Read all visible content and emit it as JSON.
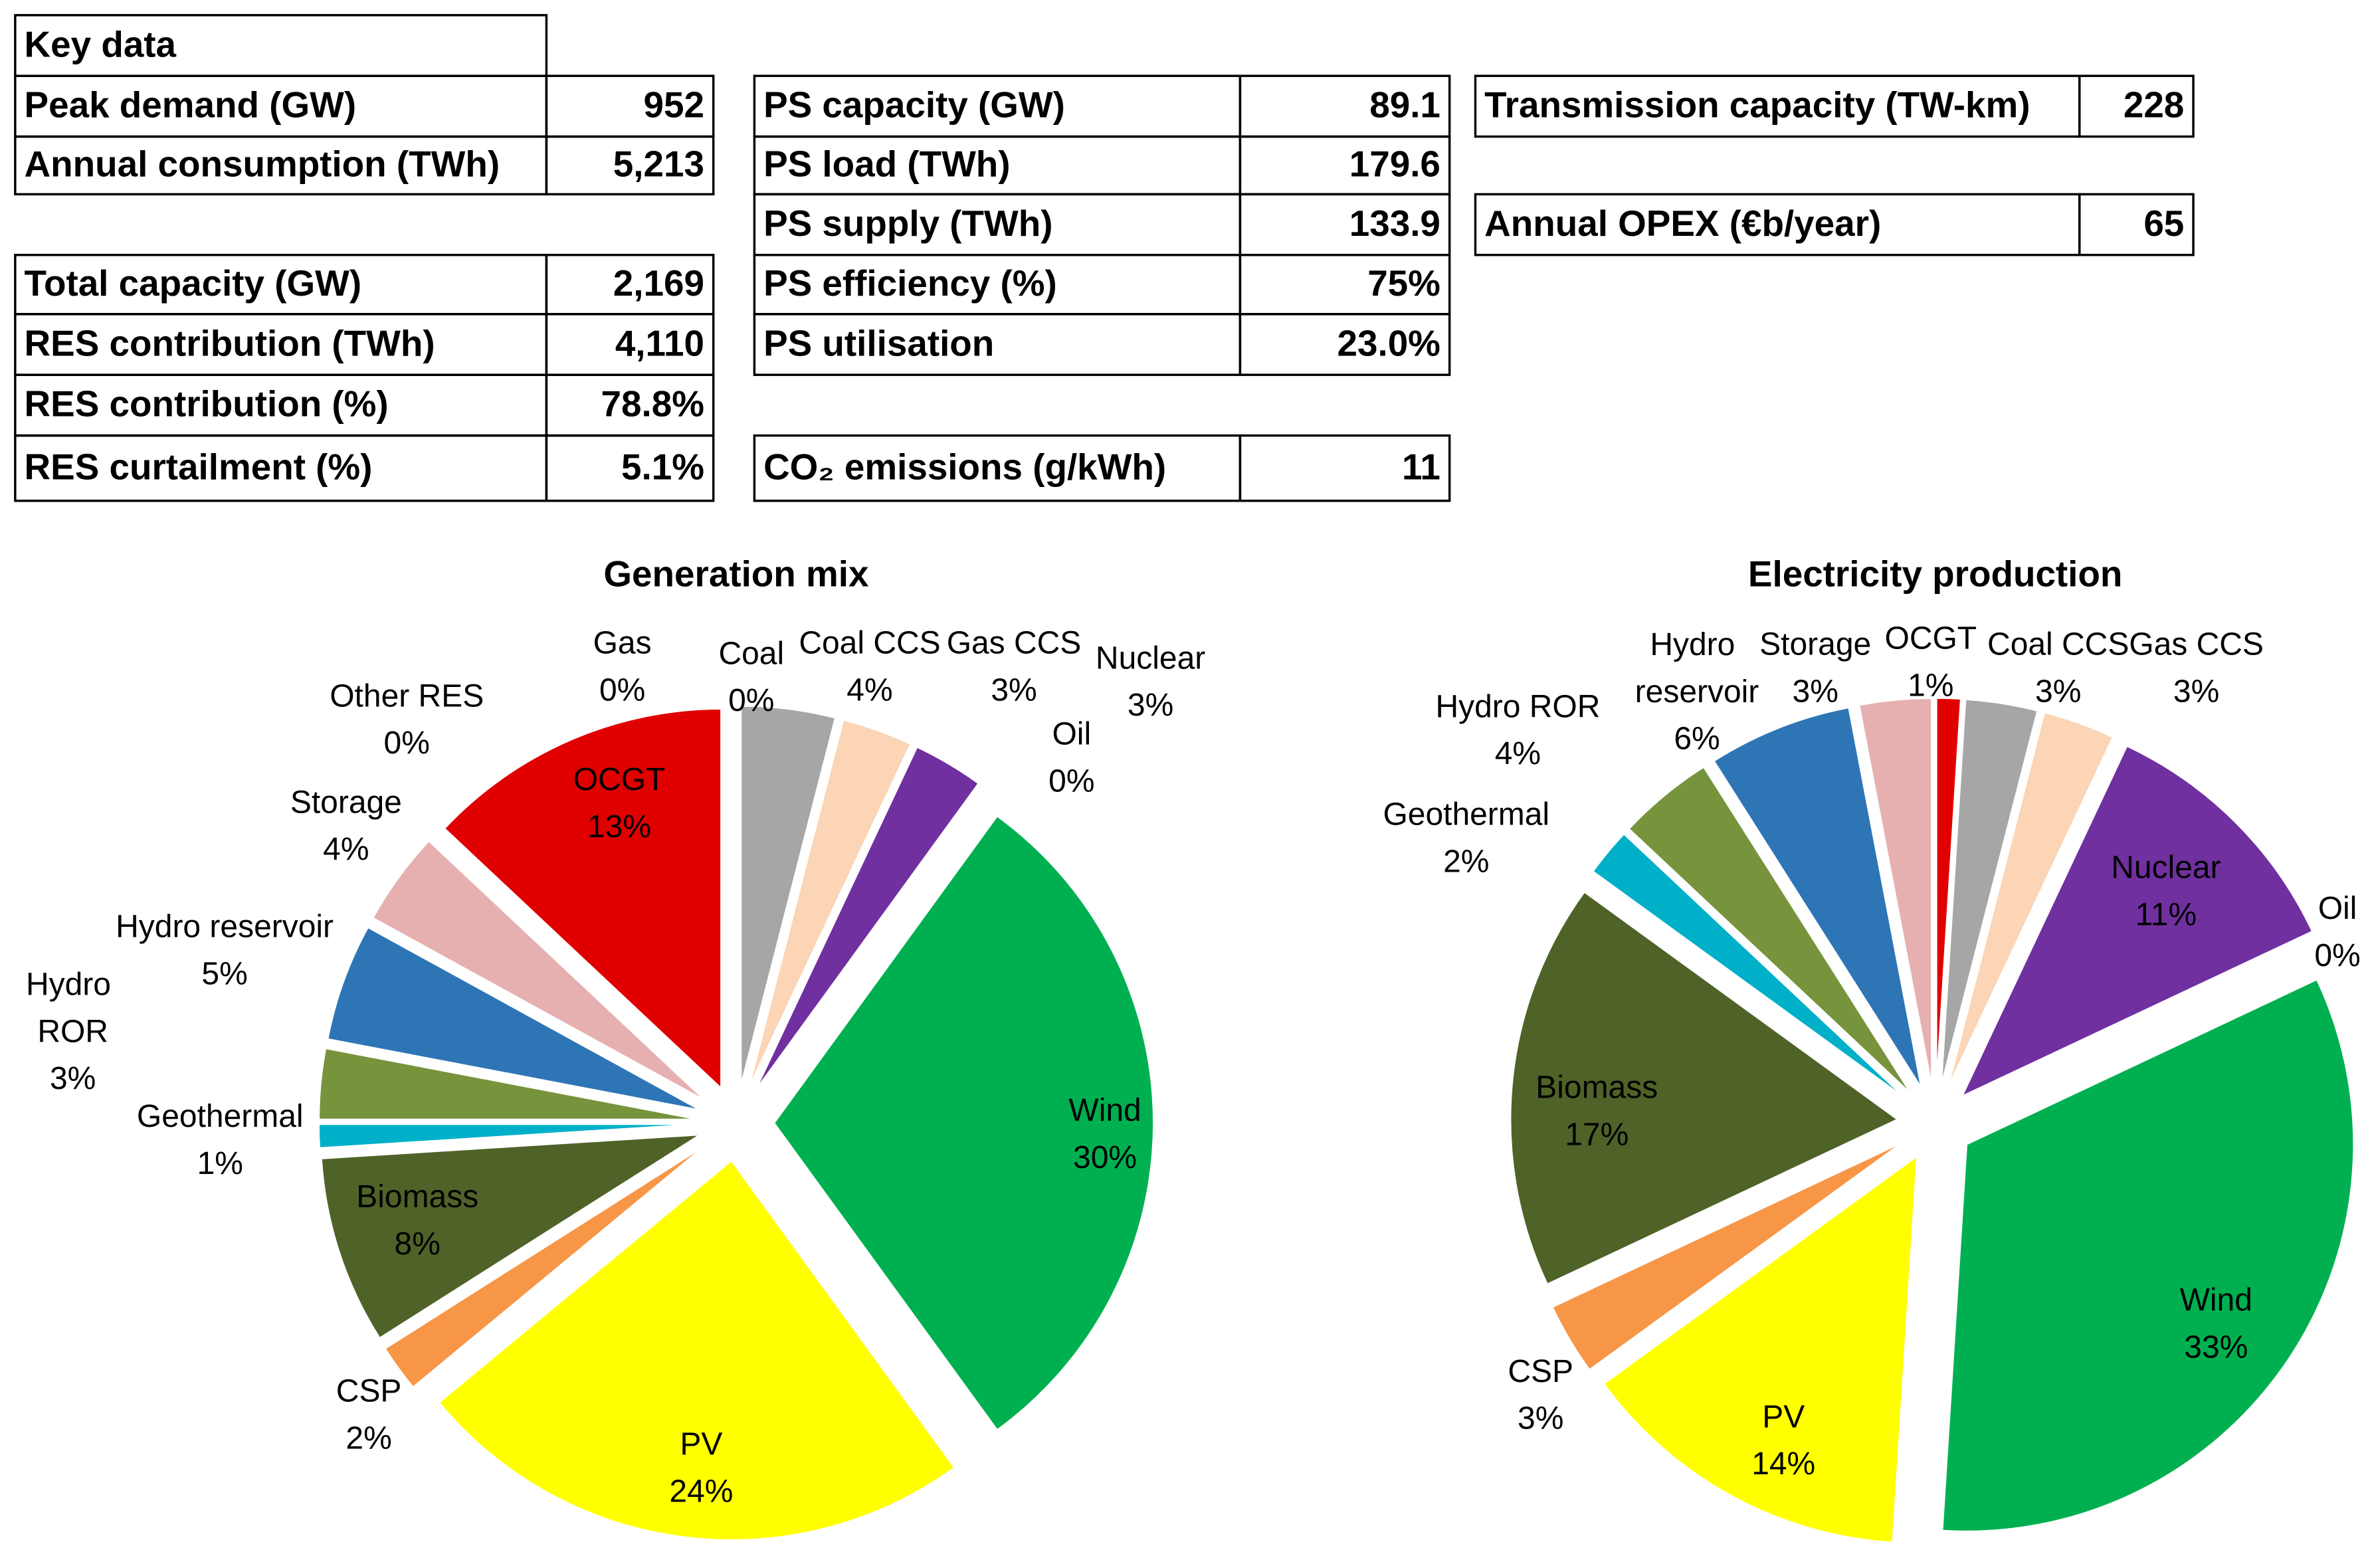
{
  "tables": [
    {
      "title": "Key data",
      "rows": [
        [
          "Peak demand (GW)",
          "952"
        ],
        [
          "Annual consumption (TWh)",
          "5,213"
        ]
      ]
    },
    {
      "rows": [
        [
          "Total capacity (GW)",
          "2,169"
        ],
        [
          "RES contribution (TWh)",
          "4,110"
        ],
        [
          "RES contribution (%)",
          "78.8%"
        ],
        [
          "RES curtailment (%)",
          "5.1%"
        ]
      ]
    },
    {
      "rows": [
        [
          "PS capacity (GW)",
          "89.1"
        ],
        [
          "PS load (TWh)",
          "179.6"
        ],
        [
          "PS supply (TWh)",
          "133.9"
        ],
        [
          "PS efficiency (%)",
          "75%"
        ],
        [
          "PS utilisation",
          "23.0%"
        ]
      ]
    },
    {
      "rows": [
        [
          "CO₂ emissions (g/kWh)",
          "11"
        ]
      ]
    },
    {
      "rows": [
        [
          "Transmission capacity (TW-km)",
          "228"
        ]
      ]
    },
    {
      "rows": [
        [
          "Annual OPEX (€b/year)",
          "65"
        ]
      ]
    }
  ],
  "chart_data": [
    {
      "type": "pie",
      "title": "Generation mix",
      "categories": [
        "Gas",
        "Coal",
        "Coal CCS",
        "Gas CCS",
        "Nuclear",
        "Oil",
        "Wind",
        "PV",
        "CSP",
        "Biomass",
        "Geothermal",
        "Hydro ROR",
        "Hydro reservoir",
        "Storage",
        "Other RES",
        "OCGT"
      ],
      "values": [
        0,
        0,
        4,
        3,
        3,
        0,
        30,
        24,
        2,
        8,
        1,
        3,
        5,
        4,
        0,
        13
      ],
      "value_labels": [
        "0%",
        "0%",
        "4%",
        "3%",
        "3%",
        "0%",
        "30%",
        "24%",
        "2%",
        "8%",
        "1%",
        "3%",
        "5%",
        "4%",
        "0%",
        "13%"
      ],
      "colors": [
        "#c0504d",
        "#7f7f7f",
        "#a6a6a6",
        "#fbd5b5",
        "#7030a0",
        "#d9d9d9",
        "#00b050",
        "#ffff00",
        "#f79646",
        "#4f6228",
        "#00b0c8",
        "#77933c",
        "#2e75b6",
        "#e6b0b0",
        "#c3d69b",
        "#e00000"
      ]
    },
    {
      "type": "pie",
      "title": "Electricity production",
      "categories": [
        "OCGT",
        "Coal CCS",
        "Gas CCS",
        "Nuclear",
        "Oil",
        "Wind",
        "PV",
        "CSP",
        "Biomass",
        "Geothermal",
        "Hydro ROR",
        "Hydro reservoir",
        "Storage"
      ],
      "values": [
        1,
        3,
        3,
        11,
        0,
        33,
        14,
        3,
        17,
        2,
        4,
        6,
        3
      ],
      "value_labels": [
        "1%",
        "3%",
        "3%",
        "11%",
        "0%",
        "33%",
        "14%",
        "3%",
        "17%",
        "2%",
        "4%",
        "6%",
        "3%"
      ],
      "colors": [
        "#e00000",
        "#a6a6a6",
        "#fbd5b5",
        "#7030a0",
        "#d9d9d9",
        "#00b050",
        "#ffff00",
        "#f79646",
        "#4f6228",
        "#00b0c8",
        "#77933c",
        "#2e75b6",
        "#e6b0b0"
      ]
    }
  ]
}
